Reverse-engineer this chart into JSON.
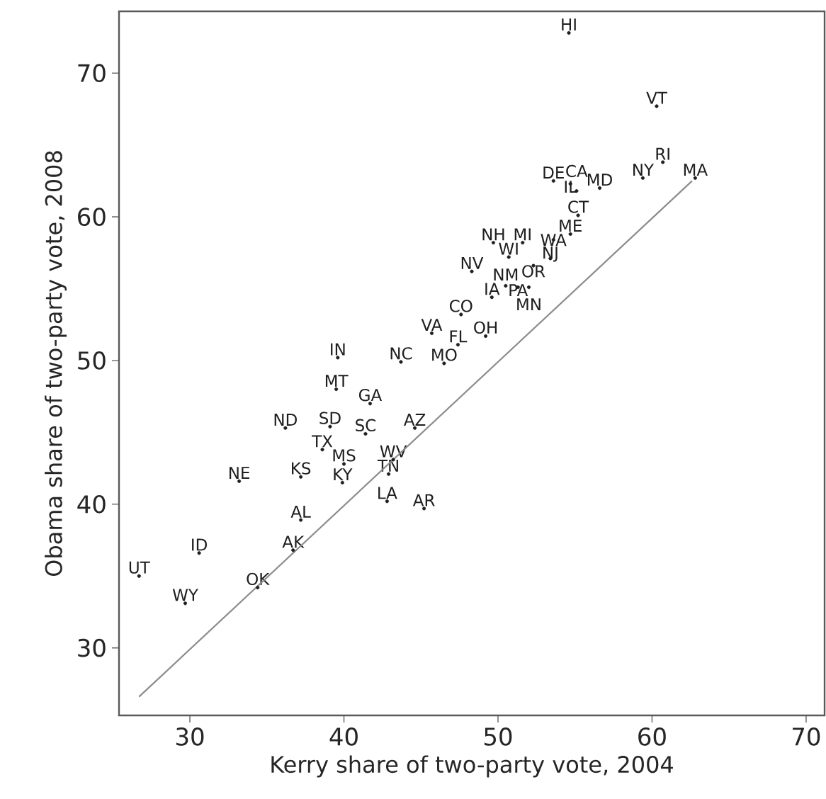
{
  "chart_data": {
    "type": "scatter",
    "xlabel": "Kerry share of two-party vote, 2004",
    "ylabel": "Obama share of two-party vote, 2008",
    "xlim": [
      25.4,
      71.2
    ],
    "ylim": [
      25.3,
      74.3
    ],
    "xticks": [
      30,
      40,
      50,
      60,
      70
    ],
    "yticks": [
      30,
      40,
      50,
      60,
      70
    ],
    "series": [
      {
        "color": "#1f1f1f",
        "marker": "circle",
        "x": [
          39.5,
          41.7,
          36.2,
          39.1,
          41.4,
          38.6,
          40.0,
          43.2,
          42.9,
          37.2,
          39.9,
          33.2,
          42.8,
          37.2,
          36.7,
          30.6,
          26.7,
          29.7,
          34.4,
          44.6,
          45.2,
          54.6,
          60.3,
          60.7,
          59.4,
          62.8,
          53.6,
          54.7,
          55.1,
          56.6,
          55.2,
          54.7,
          53.6,
          53.4,
          51.6,
          49.7,
          50.7,
          48.3,
          52.3,
          49.6,
          50.5,
          51.3,
          52.0,
          47.6,
          45.7,
          47.4,
          49.2,
          46.5,
          43.7,
          39.6
        ],
        "values": [
          48.0,
          47.0,
          45.3,
          45.4,
          44.9,
          43.8,
          42.8,
          43.1,
          42.1,
          41.9,
          41.5,
          41.6,
          40.2,
          38.9,
          36.8,
          36.6,
          35.0,
          33.1,
          34.2,
          45.3,
          39.7,
          72.8,
          67.7,
          63.8,
          62.7,
          62.7,
          62.5,
          62.3,
          61.8,
          62.0,
          60.1,
          58.8,
          58.4,
          57.1,
          58.2,
          58.2,
          57.2,
          56.2,
          56.6,
          54.4,
          55.2,
          55.1,
          55.1,
          53.2,
          51.9,
          51.1,
          51.7,
          49.8,
          49.9,
          50.2
        ]
      },
      {
        "type": "line",
        "color": "#8c8c8c",
        "x": [
          26.7,
          62.6
        ],
        "values": [
          26.6,
          62.5
        ]
      }
    ],
    "annotations": [
      "MT",
      "GA",
      "ND",
      "SD",
      "SC",
      "TX",
      "MS",
      "WV",
      "TN",
      "KS",
      "KY",
      "NE",
      "LA",
      "AL",
      "AK",
      "ID",
      "UT",
      "WY",
      "OK",
      "AZ",
      "AR",
      "HI",
      "VT",
      "RI",
      "NY",
      "MA",
      "DE",
      "IL",
      "CA",
      "MD",
      "CT",
      "ME",
      "WA",
      "NJ",
      "MI",
      "NH",
      "WI",
      "NV",
      "OR",
      "IA",
      "NM",
      "PA",
      "MN",
      "CO",
      "VA",
      "FL",
      "OH",
      "MO",
      "NC",
      "IN"
    ]
  }
}
